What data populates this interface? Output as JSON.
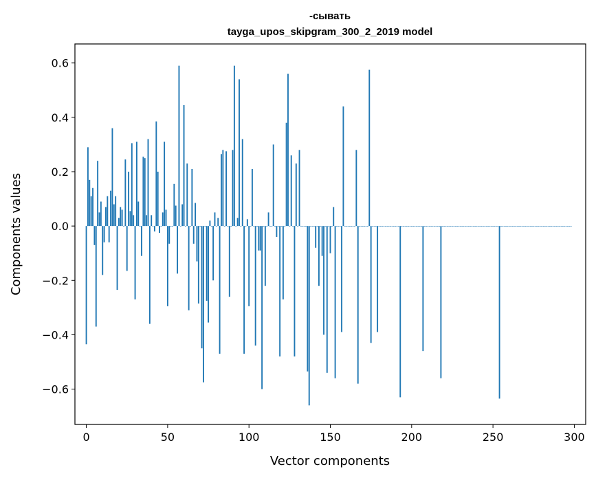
{
  "chart_data": {
    "type": "bar",
    "title_line1": "-сывать",
    "title_line2": "tayga_upos_skipgram_300_2_2019 model",
    "xlabel": "Vector components",
    "ylabel": "Components values",
    "xlim": [
      -7,
      307
    ],
    "ylim": [
      -0.73,
      0.67
    ],
    "xticks": [
      0,
      50,
      100,
      150,
      200,
      250,
      300
    ],
    "xtick_labels": [
      "0",
      "50",
      "100",
      "150",
      "200",
      "250",
      "300"
    ],
    "yticks": [
      -0.6,
      -0.4,
      -0.2,
      0.0,
      0.2,
      0.4,
      0.6
    ],
    "ytick_labels": [
      "−0.6",
      "−0.4",
      "−0.2",
      "0.0",
      "0.2",
      "0.4",
      "0.6"
    ],
    "bar_color": "#1f77b4",
    "values": [
      -0.435,
      0.29,
      0.17,
      0.11,
      0.14,
      -0.07,
      -0.37,
      0.24,
      0.05,
      0.09,
      -0.18,
      -0.06,
      0.07,
      0.11,
      -0.06,
      0.13,
      0.36,
      0.08,
      0.11,
      -0.235,
      0.03,
      0.07,
      0.06,
      0.0,
      0.245,
      -0.165,
      0.2,
      0.055,
      0.305,
      0.04,
      -0.27,
      0.31,
      0.09,
      0.0,
      -0.11,
      0.255,
      0.25,
      0.04,
      0.32,
      -0.36,
      0.04,
      0.0,
      -0.02,
      0.385,
      0.2,
      -0.025,
      0.0,
      0.05,
      0.31,
      0.06,
      -0.295,
      -0.065,
      0.0,
      0.0,
      0.155,
      0.075,
      -0.175,
      0.59,
      0.0,
      0.08,
      0.445,
      0.0,
      0.23,
      -0.31,
      0.0,
      0.21,
      -0.065,
      0.085,
      -0.13,
      -0.285,
      0.0,
      -0.45,
      -0.575,
      0.0,
      -0.275,
      -0.355,
      0.02,
      0.0,
      -0.2,
      0.05,
      0.0,
      0.03,
      -0.47,
      0.265,
      0.28,
      0.0,
      0.275,
      0.0,
      -0.26,
      0.0,
      0.28,
      0.59,
      0.0,
      0.03,
      0.54,
      0.0,
      0.32,
      -0.47,
      0.0,
      0.025,
      -0.295,
      0.0,
      0.21,
      0.0,
      -0.44,
      0.0,
      -0.09,
      -0.09,
      -0.6,
      0.0,
      -0.22,
      0.0,
      0.05,
      0.0,
      0.0,
      0.3,
      0.0,
      -0.04,
      0.0,
      -0.48,
      0.0,
      -0.27,
      0.0,
      0.38,
      0.56,
      0.0,
      0.26,
      0.0,
      -0.48,
      0.23,
      0.0,
      0.28,
      0.0,
      0.0,
      0.0,
      0.0,
      -0.535,
      -0.66,
      0.0,
      0.0,
      0.0,
      -0.08,
      0.0,
      -0.22,
      0.0,
      -0.11,
      -0.4,
      0.0,
      -0.54,
      0.0,
      -0.1,
      0.0,
      0.07,
      -0.56,
      0.0,
      0.0,
      0.0,
      -0.39,
      0.44,
      0.0,
      0.0,
      0.0,
      0.0,
      0.0,
      0.0,
      0.0,
      0.28,
      -0.58,
      0.0,
      0.0,
      0.0,
      0.0,
      0.0,
      0.0,
      0.575,
      -0.43,
      0.0,
      0.0,
      0.0,
      -0.39,
      0.0,
      0.0,
      0.0,
      0.0,
      0.0,
      0.0,
      0.0,
      0.0,
      0.0,
      0.0,
      0.0,
      0.0,
      0.0,
      -0.63,
      0.0,
      0.0,
      0.0,
      0.0,
      0.0,
      0.0,
      0.0,
      0.0,
      0.0,
      0.0,
      0.0,
      0.0,
      0.0,
      -0.46,
      0.0,
      0.0,
      0.0,
      0.0,
      0.0,
      0.0,
      0.0,
      0.0,
      0.0,
      0.0,
      -0.56,
      0.0,
      0.0,
      0.0,
      0.0,
      0.0,
      0.0,
      0.0,
      0.0,
      0.0,
      0.0,
      0.0,
      0.0,
      0.0,
      0.0,
      0.0,
      0.0,
      0.0,
      0.0,
      0.0,
      0.0,
      0.0,
      0.0,
      0.0,
      0.0,
      0.0,
      0.0,
      0.0,
      0.0,
      0.0,
      0.0,
      0.0,
      0.0,
      0.0,
      0.0,
      0.0,
      -0.635,
      0.0,
      0.0,
      0.0,
      0.0,
      0.0,
      0.0,
      0.0,
      0.0,
      0.0,
      0.0,
      0.0,
      0.0,
      0.0,
      0.0,
      0.0,
      0.0,
      0.0,
      0.0,
      0.0,
      0.0,
      0.0,
      0.0,
      0.0,
      0.0,
      0.0,
      0.0,
      0.0,
      0.0,
      0.0,
      0.0,
      0.0,
      0.0,
      0.0,
      0.0,
      0.0,
      0.0,
      0.0,
      0.0,
      0.0,
      0.0,
      0.0,
      0.0,
      0.0,
      0.0
    ]
  }
}
